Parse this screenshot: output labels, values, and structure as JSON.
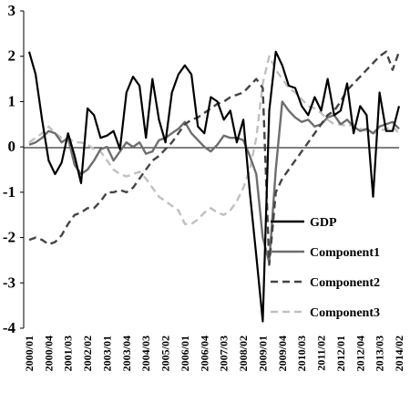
{
  "chart_data": {
    "type": "line",
    "title": "",
    "xlabel": "",
    "ylabel": "",
    "ylim": [
      -4,
      3
    ],
    "yticks": [
      3,
      2,
      1,
      0,
      -1,
      -2,
      -3,
      -4
    ],
    "grid": false,
    "legend_position": "lower-right",
    "x": [
      "2000/01",
      "2000/02",
      "2000/03",
      "2000/04",
      "2001/01",
      "2001/02",
      "2001/03",
      "2001/04",
      "2002/01",
      "2002/02",
      "2002/03",
      "2002/04",
      "2003/01",
      "2003/02",
      "2003/03",
      "2003/04",
      "2004/01",
      "2004/02",
      "2004/03",
      "2004/04",
      "2005/01",
      "2005/02",
      "2005/03",
      "2005/04",
      "2006/01",
      "2006/02",
      "2006/03",
      "2006/04",
      "2007/01",
      "2007/02",
      "2007/03",
      "2007/04",
      "2008/01",
      "2008/02",
      "2008/03",
      "2008/04",
      "2009/01",
      "2009/02",
      "2009/03",
      "2009/04",
      "2010/01",
      "2010/02",
      "2010/03",
      "2010/04",
      "2011/01",
      "2011/02",
      "2011/03",
      "2011/04",
      "2012/01",
      "2012/02",
      "2012/03",
      "2012/04",
      "2013/01",
      "2013/02",
      "2013/03",
      "2013/04",
      "2014/01",
      "2014/02"
    ],
    "x_tick_labels": [
      "2000/01",
      "2000/04",
      "2001/03",
      "2002/02",
      "2003/01",
      "2003/04",
      "2004/03",
      "2005/02",
      "2006/01",
      "2006/04",
      "2007/03",
      "2008/02",
      "2009/01",
      "2009/04",
      "2010/03",
      "2011/02",
      "2012/01",
      "2012/04",
      "2013/03",
      "2014/02"
    ],
    "series": [
      {
        "name": "GDP",
        "color": "#000000",
        "dash": "solid",
        "values": [
          2.1,
          1.6,
          0.6,
          -0.3,
          -0.6,
          -0.35,
          0.3,
          -0.2,
          -0.8,
          0.85,
          0.7,
          0.2,
          0.25,
          0.35,
          -0.05,
          1.2,
          1.55,
          1.35,
          0.2,
          1.5,
          0.6,
          0.1,
          1.2,
          1.6,
          1.8,
          1.6,
          0.45,
          0.3,
          1.1,
          1.0,
          0.6,
          0.8,
          0.1,
          0.6,
          -1.0,
          -2.4,
          -3.85,
          0.8,
          2.1,
          1.8,
          1.35,
          1.3,
          0.9,
          0.7,
          1.1,
          0.8,
          1.5,
          0.7,
          0.8,
          1.4,
          0.3,
          0.9,
          0.7,
          -1.1,
          1.2,
          0.35,
          0.35,
          0.9
        ]
      },
      {
        "name": "Component1",
        "color": "#6e6e6e",
        "dash": "solid",
        "values": [
          0.05,
          0.1,
          0.2,
          0.35,
          0.3,
          0.1,
          0.2,
          -0.4,
          -0.6,
          -0.5,
          -0.3,
          -0.05,
          0.0,
          -0.3,
          -0.1,
          0.1,
          0.0,
          0.1,
          -0.15,
          -0.1,
          0.15,
          0.2,
          0.3,
          0.4,
          0.55,
          0.3,
          0.15,
          0.0,
          -0.1,
          0.05,
          0.25,
          0.2,
          0.2,
          0.15,
          -0.2,
          -0.6,
          -2.0,
          -2.55,
          -0.5,
          1.0,
          0.8,
          0.65,
          0.55,
          0.6,
          0.45,
          0.5,
          0.65,
          0.7,
          0.5,
          0.6,
          0.45,
          0.35,
          0.4,
          0.3,
          0.45,
          0.5,
          0.55,
          0.4
        ]
      },
      {
        "name": "Component2",
        "color": "#444444",
        "dash": "dash",
        "values": [
          -2.05,
          -2.0,
          -2.05,
          -2.15,
          -2.1,
          -1.95,
          -1.7,
          -1.5,
          -1.45,
          -1.35,
          -1.35,
          -1.2,
          -1.0,
          -1.0,
          -0.95,
          -1.0,
          -0.9,
          -0.7,
          -0.5,
          -0.3,
          -0.2,
          -0.05,
          0.1,
          0.3,
          0.5,
          0.6,
          0.65,
          0.75,
          0.85,
          0.95,
          1.0,
          1.1,
          1.15,
          1.2,
          1.35,
          1.5,
          1.3,
          -2.6,
          -1.0,
          -0.7,
          -0.5,
          -0.3,
          -0.1,
          0.1,
          0.3,
          0.5,
          0.7,
          0.8,
          1.0,
          1.25,
          1.4,
          1.55,
          1.7,
          1.85,
          2.0,
          2.1,
          1.7,
          2.1
        ]
      },
      {
        "name": "Component3",
        "color": "#c0c0c0",
        "dash": "dash",
        "values": [
          0.1,
          0.2,
          0.3,
          0.45,
          0.3,
          0.2,
          0.2,
          0.1,
          0.1,
          0.05,
          -0.05,
          -0.1,
          -0.3,
          -0.5,
          -0.6,
          -0.65,
          -0.6,
          -0.55,
          -0.7,
          -0.9,
          -1.1,
          -1.2,
          -1.3,
          -1.4,
          -1.7,
          -1.7,
          -1.6,
          -1.45,
          -1.35,
          -1.45,
          -1.5,
          -1.4,
          -1.2,
          -0.9,
          -0.5,
          0.2,
          1.4,
          2.0,
          1.7,
          1.5,
          1.3,
          1.2,
          1.05,
          0.9,
          0.85,
          0.75,
          0.6,
          0.5,
          0.5,
          0.45,
          0.5,
          0.4,
          0.35,
          0.3,
          0.35,
          0.4,
          0.45,
          0.3
        ]
      }
    ],
    "legend": [
      {
        "name": "GDP",
        "label": "GDP"
      },
      {
        "name": "Component1",
        "label": "Component1"
      },
      {
        "name": "Component2",
        "label": "Component2"
      },
      {
        "name": "Component3",
        "label": "Component3"
      }
    ]
  }
}
